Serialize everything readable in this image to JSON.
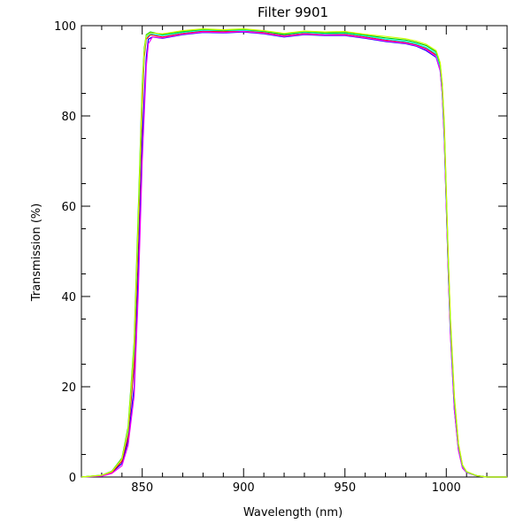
{
  "chart_data": {
    "type": "line",
    "title": "Filter 9901",
    "xlabel": "Wavelength (nm)",
    "ylabel": "Transmission (%)",
    "xlim": [
      820,
      1030
    ],
    "ylim": [
      0,
      100
    ],
    "x_ticks": [
      850,
      900,
      950,
      1000
    ],
    "y_ticks": [
      0,
      20,
      40,
      60,
      80,
      100
    ],
    "grid": false,
    "legend": "none",
    "series": [
      {
        "color": "#0000ff",
        "x": [
          820,
          830,
          835,
          840,
          843,
          846,
          848,
          850,
          852,
          853,
          855,
          860,
          870,
          880,
          890,
          900,
          910,
          920,
          930,
          940,
          950,
          960,
          970,
          980,
          985,
          990,
          995,
          997,
          998,
          999,
          1000,
          1001,
          1002,
          1004,
          1006,
          1008,
          1010,
          1015,
          1020,
          1030
        ],
        "y": [
          0,
          0.3,
          1,
          3,
          8,
          20,
          45,
          75,
          93,
          97,
          97.5,
          97.2,
          98,
          98.5,
          98.4,
          98.6,
          98.2,
          97.5,
          98,
          97.8,
          97.8,
          97.2,
          96.5,
          96,
          95.5,
          94.5,
          93,
          90,
          85,
          75,
          60,
          45,
          32,
          15,
          6,
          2,
          1,
          0.3,
          0,
          0
        ]
      },
      {
        "color": "#ff0000",
        "x": [
          820,
          830,
          835,
          840,
          843,
          846,
          848,
          850,
          851,
          852,
          854,
          860,
          870,
          880,
          890,
          900,
          910,
          920,
          930,
          940,
          950,
          960,
          970,
          980,
          985,
          990,
          995,
          997,
          998,
          999,
          1000,
          1001,
          1002,
          1004,
          1006,
          1008,
          1010,
          1015,
          1020,
          1030
        ],
        "y": [
          0,
          0.3,
          1,
          3.5,
          9,
          25,
          52,
          82,
          93,
          97,
          98,
          97.5,
          98.3,
          98.8,
          98.7,
          98.9,
          98.5,
          97.8,
          98.3,
          98,
          98.1,
          97.5,
          96.8,
          96.3,
          95.8,
          95,
          93.5,
          90.5,
          86,
          76,
          61,
          46,
          33,
          16,
          6.5,
          2.2,
          1,
          0.3,
          0,
          0
        ]
      },
      {
        "color": "#ff00ff",
        "x": [
          820,
          830,
          835,
          840,
          843,
          846,
          848,
          850,
          852,
          853,
          855,
          860,
          870,
          880,
          890,
          900,
          910,
          920,
          930,
          940,
          950,
          960,
          970,
          980,
          985,
          990,
          995,
          997,
          998,
          999,
          1000,
          1001,
          1002,
          1004,
          1006,
          1008,
          1010,
          1015,
          1020,
          1030
        ],
        "y": [
          0,
          0.2,
          0.8,
          2.5,
          7,
          18,
          40,
          70,
          91,
          96,
          97.5,
          97.3,
          98.1,
          98.6,
          98.5,
          98.7,
          98.3,
          97.6,
          98.1,
          97.9,
          97.9,
          97.3,
          96.6,
          96.1,
          95.6,
          94.7,
          93.2,
          90,
          85,
          75,
          60,
          45,
          32,
          15,
          6,
          2,
          1,
          0.3,
          0,
          0
        ]
      },
      {
        "color": "#00ffff",
        "x": [
          820,
          830,
          835,
          840,
          843,
          846,
          848,
          850,
          851,
          852,
          854,
          860,
          870,
          880,
          890,
          900,
          910,
          920,
          930,
          940,
          950,
          960,
          970,
          980,
          985,
          990,
          995,
          997,
          998,
          999,
          1000,
          1001,
          1002,
          1004,
          1006,
          1008,
          1010,
          1015,
          1020,
          1030
        ],
        "y": [
          0,
          0.4,
          1.2,
          4,
          10,
          28,
          55,
          85,
          94,
          97.5,
          98.2,
          97.8,
          98.5,
          99,
          98.9,
          99,
          98.7,
          98,
          98.5,
          98.2,
          98.3,
          97.7,
          97,
          96.5,
          96,
          95.2,
          93.8,
          91,
          86.5,
          77,
          62,
          47,
          34,
          17,
          7,
          2.5,
          1.1,
          0.3,
          0,
          0
        ]
      },
      {
        "color": "#00cc00",
        "x": [
          820,
          830,
          835,
          840,
          843,
          846,
          848,
          850,
          851,
          852,
          854,
          860,
          870,
          880,
          890,
          900,
          910,
          920,
          930,
          940,
          950,
          960,
          970,
          980,
          985,
          990,
          995,
          997,
          998,
          999,
          1000,
          1001,
          1002,
          1004,
          1006,
          1008,
          1010,
          1015,
          1020,
          1030
        ],
        "y": [
          0,
          0.4,
          1.3,
          4.2,
          11,
          30,
          58,
          87,
          95,
          98,
          98.6,
          98,
          98.7,
          99.2,
          99,
          99.2,
          98.8,
          98.1,
          98.7,
          98.4,
          98.5,
          97.9,
          97.3,
          96.8,
          96.3,
          95.6,
          94.2,
          91.5,
          87,
          78,
          63,
          48,
          35,
          17.5,
          7.2,
          2.6,
          1.2,
          0.3,
          0,
          0
        ]
      },
      {
        "color": "#ccff00",
        "x": [
          820,
          830,
          835,
          840,
          843,
          846,
          848,
          850,
          851,
          852,
          854,
          860,
          870,
          880,
          890,
          900,
          910,
          920,
          930,
          940,
          950,
          960,
          970,
          980,
          985,
          990,
          995,
          997,
          998,
          999,
          1000,
          1001,
          1002,
          1004,
          1006,
          1008,
          1010,
          1015,
          1020,
          1030
        ],
        "y": [
          0,
          0.4,
          1.2,
          4,
          10.5,
          29,
          56,
          86,
          94.5,
          97.8,
          98.4,
          98.2,
          98.9,
          99.3,
          99.1,
          99.3,
          98.9,
          98.3,
          98.8,
          98.6,
          98.7,
          98.1,
          97.6,
          97.1,
          96.6,
          95.9,
          94.5,
          91.8,
          87.3,
          78.5,
          63.5,
          48.5,
          35.5,
          18,
          7.4,
          2.7,
          1.2,
          0.3,
          0,
          0
        ]
      }
    ]
  }
}
